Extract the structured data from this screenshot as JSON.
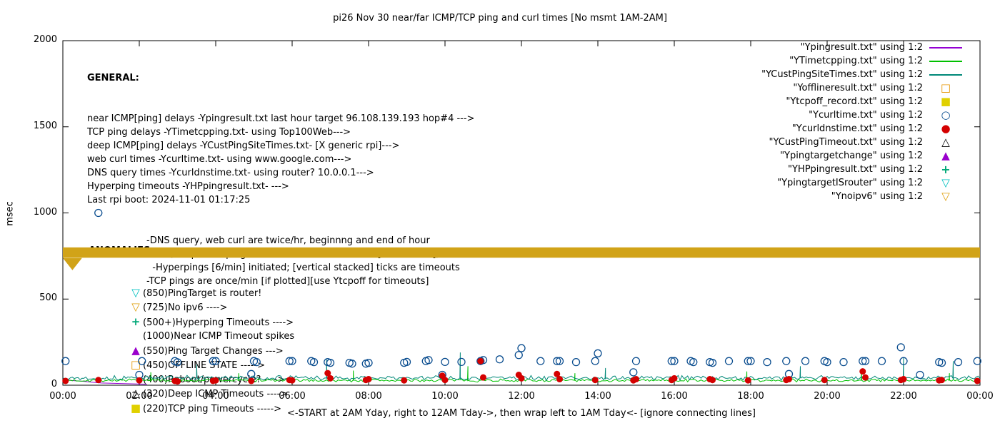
{
  "title": "pi26 Nov 30  near/far ICMP/TCP ping and curl times [No msmt 1AM-2AM]",
  "axes": {
    "ylabel": "msec",
    "xlabel": "<-START at 2AM Yday, right to 12AM Tday->, then wrap left to 1AM Tday<- [ignore connecting lines]",
    "yticks": [
      0,
      500,
      1000,
      1500,
      2000
    ],
    "xticks": [
      "00:00",
      "02:00",
      "04:00",
      "06:00",
      "08:00",
      "10:00",
      "12:00",
      "14:00",
      "16:00",
      "18:00",
      "20:00",
      "22:00",
      "00:00"
    ]
  },
  "general_header": "GENERAL:",
  "general_lines": [
    "near ICMP[ping] delays -Ypingresult.txt last hour target 96.108.139.193 hop#4 --->",
    "TCP ping delays -YTimetcpping.txt- using Top100Web--->",
    "deep ICMP[ping] delays -YCustPingSiteTimes.txt- [X generic rpi]--->",
    "web curl times -Ycurltime.txt- using www.google.com--->",
    "DNS query times -Ycurldnstime.txt- using router? 10.0.0.1--->",
    "Hyperping timeouts -YHPpingresult.txt- --->",
    "Last rpi boot: 2024-11-01 01:17:25"
  ],
  "notes_lines": [
    "-DNS query, web curl are twice/hr, beginnng and end of hour",
    "-near,deep ICMP pings are once/min until timeout[1000 msec], then:",
    "  -Hyperpings [6/min] initiated; [vertical stacked] ticks are timeouts",
    "-TCP pings are once/min [if plotted][use Ytcpoff for timeouts]"
  ],
  "anomalies_header": "ANOMALIES:",
  "anomalies": [
    {
      "marker": "triangle-down-open",
      "color": "#00c0c0",
      "text": "(850)PingTarget is router!"
    },
    {
      "marker": "triangle-down-open",
      "color": "#e0a010",
      "text": "(725)No ipv6 ---->"
    },
    {
      "marker": "plus",
      "color": "#00a878",
      "text": "(500+)Hyperping Timeouts ---->"
    },
    {
      "marker": "",
      "color": "",
      "text": "(1000)Near ICMP Timeout spikes"
    },
    {
      "marker": "triangle-up-filled",
      "color": "#9900cc",
      "text": "(550)Ping Target Changes --->"
    },
    {
      "marker": "square-open",
      "color": "#e69500",
      "text": "(450)OFFLINE STATE ----->"
    },
    {
      "marker": "",
      "color": "",
      "text": "(400)Reboot/powercycle? ---->"
    },
    {
      "marker": "triangle-up-open",
      "color": "#000000",
      "text": "(320)Deep ICMP Timeouts ---->"
    },
    {
      "marker": "square-filled",
      "color": "#e0d000",
      "text": "(220)TCP ping Timeouts ----->"
    }
  ],
  "legend": [
    {
      "label": "\"Ypingresult.txt\" using 1:2",
      "marker": "line",
      "color": "#9400d3"
    },
    {
      "label": "\"YTimetcpping.txt\" using 1:2",
      "marker": "line",
      "color": "#00c000"
    },
    {
      "label": "\"YCustPingSiteTimes.txt\" using 1:2",
      "marker": "line",
      "color": "#008878"
    },
    {
      "label": "\"Yofflineresult.txt\" using 1:2",
      "marker": "square-open",
      "color": "#e69500"
    },
    {
      "label": "\"Ytcpoff_record.txt\" using 1:2",
      "marker": "square-filled",
      "color": "#e0d000"
    },
    {
      "label": "\"Ycurltime.txt\" using 1:2",
      "marker": "circle-open",
      "color": "#0a4d8f"
    },
    {
      "label": "\"Ycurldnstime.txt\" using 1:2",
      "marker": "circle-filled",
      "color": "#d40000"
    },
    {
      "label": "\"YCustPingTimeout.txt\" using 1:2",
      "marker": "triangle-up-open",
      "color": "#000000"
    },
    {
      "label": "\"Ypingtargetchange\" using 1:2",
      "marker": "triangle-up-filled",
      "color": "#9900cc"
    },
    {
      "label": "\"YHPpingresult.txt\" using 1:2",
      "marker": "plus",
      "color": "#00a878"
    },
    {
      "label": "\"YpingtargetISrouter\" using 1:2",
      "marker": "triangle-down-open",
      "color": "#00c0c0"
    },
    {
      "label": "\"Ynoipv6\" using 1:2",
      "marker": "triangle-down-open",
      "color": "#e0a010"
    }
  ],
  "chart_data": {
    "type": "line",
    "x_unit": "hours",
    "x_range": [
      0,
      24
    ],
    "ylim": [
      0,
      2000
    ],
    "grid": false,
    "legend_position": "top-right-outside-column",
    "series": [
      {
        "name": "Ypingresult.txt",
        "style": "line",
        "color": "#9400d3",
        "points": [
          [
            0,
            32
          ],
          [
            0.25,
            27
          ],
          [
            0.5,
            23
          ],
          [
            0.75,
            18
          ],
          [
            1.0,
            13
          ],
          [
            2.2,
            6
          ]
        ]
      },
      {
        "name": "YTimetcpping.txt",
        "style": "noisy-line",
        "color": "#00c000",
        "baseline": 28,
        "amplitude": 10,
        "seed": 7,
        "spikes": [
          [
            2.3,
            75
          ],
          [
            4.6,
            70
          ],
          [
            7.6,
            85
          ],
          [
            10.6,
            110
          ],
          [
            13.4,
            70
          ],
          [
            17.9,
            80
          ],
          [
            20.9,
            95
          ],
          [
            23.2,
            70
          ]
        ]
      },
      {
        "name": "YCustPingSiteTimes.txt",
        "style": "noisy-line",
        "color": "#008878",
        "baseline": 42,
        "amplitude": 16,
        "seed": 13,
        "spikes": [
          [
            3.5,
            120
          ],
          [
            6.9,
            150
          ],
          [
            10.4,
            190
          ],
          [
            14.2,
            100
          ],
          [
            19.3,
            110
          ],
          [
            22.0,
            160
          ],
          [
            23.3,
            140
          ]
        ]
      },
      {
        "name": "Ynoipv6-band",
        "style": "band",
        "color": "#d1a318",
        "y1": 740,
        "y2": 800,
        "wedge": [
          [
            0.0,
            738
          ],
          [
            0.25,
            668
          ],
          [
            0.5,
            738
          ]
        ]
      },
      {
        "name": "Ycurltime.txt",
        "style": "scatter",
        "marker": "circle-open",
        "color": "#0a4d8f",
        "points": [
          [
            0.07,
            140
          ],
          [
            0.93,
            1000
          ],
          [
            2.0,
            60
          ],
          [
            2.07,
            140
          ],
          [
            2.93,
            140
          ],
          [
            3.0,
            133
          ],
          [
            3.93,
            140
          ],
          [
            4.0,
            140
          ],
          [
            4.93,
            65
          ],
          [
            5.0,
            140
          ],
          [
            5.07,
            134
          ],
          [
            5.93,
            140
          ],
          [
            6.0,
            140
          ],
          [
            6.5,
            140
          ],
          [
            6.57,
            134
          ],
          [
            6.93,
            134
          ],
          [
            7.0,
            130
          ],
          [
            7.5,
            130
          ],
          [
            7.57,
            125
          ],
          [
            7.93,
            125
          ],
          [
            8.0,
            130
          ],
          [
            8.93,
            130
          ],
          [
            9.0,
            135
          ],
          [
            9.5,
            140
          ],
          [
            9.57,
            146
          ],
          [
            9.93,
            60
          ],
          [
            10.0,
            135
          ],
          [
            10.43,
            135
          ],
          [
            10.93,
            140
          ],
          [
            11.0,
            146
          ],
          [
            11.43,
            150
          ],
          [
            11.93,
            175
          ],
          [
            12.0,
            215
          ],
          [
            12.5,
            140
          ],
          [
            12.93,
            140
          ],
          [
            13.0,
            140
          ],
          [
            13.43,
            134
          ],
          [
            13.93,
            140
          ],
          [
            14.0,
            185
          ],
          [
            14.93,
            75
          ],
          [
            15.0,
            140
          ],
          [
            15.93,
            140
          ],
          [
            16.0,
            140
          ],
          [
            16.43,
            140
          ],
          [
            16.5,
            134
          ],
          [
            16.93,
            134
          ],
          [
            17.0,
            130
          ],
          [
            17.43,
            140
          ],
          [
            17.93,
            140
          ],
          [
            18.0,
            140
          ],
          [
            18.43,
            134
          ],
          [
            18.93,
            140
          ],
          [
            19.0,
            65
          ],
          [
            19.43,
            140
          ],
          [
            19.93,
            140
          ],
          [
            20.0,
            134
          ],
          [
            20.43,
            134
          ],
          [
            20.93,
            140
          ],
          [
            21.0,
            140
          ],
          [
            21.43,
            140
          ],
          [
            21.93,
            220
          ],
          [
            22.0,
            140
          ],
          [
            22.43,
            60
          ],
          [
            22.93,
            134
          ],
          [
            23.0,
            130
          ],
          [
            23.43,
            134
          ],
          [
            23.93,
            140
          ]
        ]
      },
      {
        "name": "Ycurldnstime.txt",
        "style": "scatter",
        "marker": "circle-filled",
        "color": "#d40000",
        "points": [
          [
            0.07,
            25
          ],
          [
            0.93,
            30
          ],
          [
            2.0,
            28
          ],
          [
            2.93,
            25
          ],
          [
            3.0,
            22
          ],
          [
            3.93,
            25
          ],
          [
            4.0,
            28
          ],
          [
            4.93,
            25
          ],
          [
            5.93,
            30
          ],
          [
            6.0,
            28
          ],
          [
            6.93,
            70
          ],
          [
            7.0,
            40
          ],
          [
            7.93,
            30
          ],
          [
            8.0,
            35
          ],
          [
            8.93,
            28
          ],
          [
            9.93,
            55
          ],
          [
            10.0,
            30
          ],
          [
            10.93,
            140
          ],
          [
            11.0,
            45
          ],
          [
            11.93,
            60
          ],
          [
            12.0,
            40
          ],
          [
            12.93,
            65
          ],
          [
            13.0,
            35
          ],
          [
            13.93,
            30
          ],
          [
            14.93,
            28
          ],
          [
            15.0,
            35
          ],
          [
            15.93,
            30
          ],
          [
            16.0,
            40
          ],
          [
            16.93,
            35
          ],
          [
            17.0,
            30
          ],
          [
            17.93,
            28
          ],
          [
            18.93,
            30
          ],
          [
            19.0,
            35
          ],
          [
            19.93,
            30
          ],
          [
            20.93,
            80
          ],
          [
            21.0,
            45
          ],
          [
            21.93,
            30
          ],
          [
            22.0,
            35
          ],
          [
            22.93,
            28
          ],
          [
            23.0,
            30
          ],
          [
            23.93,
            25
          ]
        ]
      }
    ]
  }
}
